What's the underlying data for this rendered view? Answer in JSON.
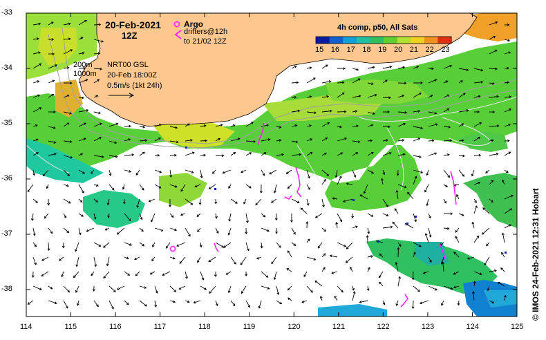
{
  "title": {
    "date": "20-Feb-2021",
    "time": "12Z"
  },
  "legend": {
    "argo_label": "Argo",
    "drifters_line1": "drifters@12h",
    "drifters_line2": "to 21/02 12Z",
    "isobath_200": "200m",
    "isobath_1000": "1000m",
    "product": "NRT00 GSL",
    "product_date": "20-Feb 18:00Z",
    "scale_text": "0.5m/s (1kt 24h)"
  },
  "colorbar": {
    "title": "4h comp, p50, All Sats",
    "ticks": [
      "15",
      "16",
      "17",
      "18",
      "19",
      "20",
      "21",
      "22",
      "23"
    ],
    "colors": [
      "#0a1aa0",
      "#1060d0",
      "#10a0d8",
      "#20c0a0",
      "#30c060",
      "#60d030",
      "#b0e030",
      "#f0d020",
      "#f09020",
      "#e03010"
    ]
  },
  "axes": {
    "lat_labels": [
      "-33",
      "-34",
      "-35",
      "-36",
      "-37",
      "-38"
    ],
    "lon_labels": [
      "114",
      "115",
      "116",
      "117",
      "118",
      "119",
      "120",
      "121",
      "122",
      "123",
      "124",
      "125"
    ]
  },
  "credit": "© IMOS 24-Feb-2021 12:31 Hobart",
  "colors": {
    "land": "#fdc890",
    "argo": "#ff30ff",
    "drifter": "#ff20ff"
  }
}
